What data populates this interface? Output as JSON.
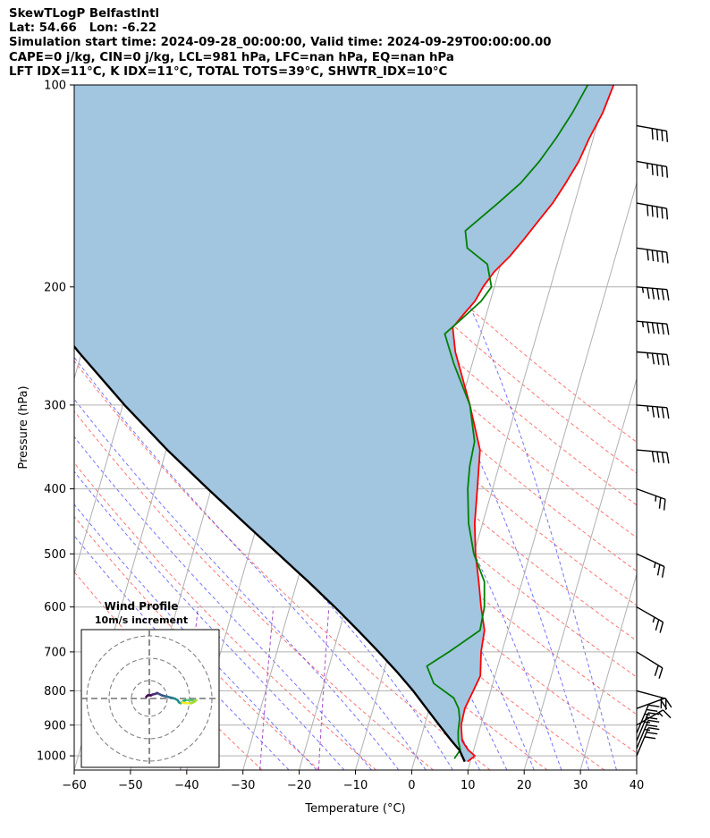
{
  "header": {
    "line1": "SkewTLogP BelfastIntl",
    "line2": "Lat: 54.66   Lon: -6.22",
    "line3": "Simulation start time: 2024-09-28_00:00:00, Valid time: 2024-09-29T00:00:00.00",
    "line4": "CAPE=0 j/kg, CIN=0 j/kg, LCL=981 hPa, LFC=nan hPa, EQ=nan hPa",
    "line5": "LFT IDX=11°C, K IDX=11°C, TOTAL TOTS=39°C, SHWTR_IDX=10°C"
  },
  "chart_data": [
    {
      "type": "line",
      "subtype": "skew-t log-p",
      "title": "",
      "xlabel": "Temperature (°C)",
      "ylabel": "Pressure (hPa)",
      "xlim": [
        -60,
        40
      ],
      "ylim": [
        1050,
        100
      ],
      "y_scale": "log",
      "x_ticks": [
        -60,
        -50,
        -40,
        -30,
        -20,
        -10,
        0,
        10,
        20,
        30,
        40
      ],
      "x_tick_labels": [
        "−60",
        "−50",
        "−40",
        "−30",
        "−20",
        "−10",
        "0",
        "10",
        "20",
        "30",
        "40"
      ],
      "y_ticks": [
        1000,
        900,
        800,
        700,
        600,
        500,
        400,
        300,
        200,
        100
      ],
      "y_tick_labels": [
        "1000",
        "900",
        "800",
        "700",
        "600",
        "500",
        "400",
        "300",
        "200",
        "100"
      ],
      "grid": true,
      "legend": "none",
      "series": [
        {
          "color": "#ff0000",
          "points": [
            [
              1020,
              9.5
            ],
            [
              1000,
              10.5
            ],
            [
              980,
              9.0
            ],
            [
              950,
              7.5
            ],
            [
              900,
              6.5
            ],
            [
              850,
              6.3
            ],
            [
              800,
              6.9
            ],
            [
              760,
              7.4
            ],
            [
              700,
              6.3
            ],
            [
              650,
              5.8
            ],
            [
              600,
              4.0
            ],
            [
              550,
              2.3
            ],
            [
              500,
              0.3
            ],
            [
              450,
              -1.4
            ],
            [
              400,
              -2.7
            ],
            [
              350,
              -4.2
            ],
            [
              300,
              -8.3
            ],
            [
              250,
              -13.6
            ],
            [
              230,
              -15.3
            ],
            [
              220,
              -14.1
            ],
            [
              210,
              -12.7
            ],
            [
              200,
              -12.0
            ],
            [
              190,
              -10.8
            ],
            [
              180,
              -8.8
            ],
            [
              170,
              -7.2
            ],
            [
              160,
              -5.6
            ],
            [
              150,
              -3.9
            ],
            [
              140,
              -2.6
            ],
            [
              130,
              -1.4
            ],
            [
              120,
              -0.7
            ],
            [
              110,
              0.4
            ],
            [
              100,
              0.9
            ]
          ]
        },
        {
          "color": "#008000",
          "points": [
            [
              1010,
              7.0
            ],
            [
              980,
              7.6
            ],
            [
              950,
              6.8
            ],
            [
              920,
              6.3
            ],
            [
              880,
              5.9
            ],
            [
              850,
              5.2
            ],
            [
              820,
              3.8
            ],
            [
              780,
              -0.5
            ],
            [
              735,
              -2.6
            ],
            [
              700,
              0.6
            ],
            [
              650,
              5.0
            ],
            [
              600,
              4.6
            ],
            [
              550,
              3.3
            ],
            [
              500,
              0.0
            ],
            [
              450,
              -2.5
            ],
            [
              400,
              -4.4
            ],
            [
              370,
              -5.2
            ],
            [
              340,
              -5.6
            ],
            [
              300,
              -8.3
            ],
            [
              260,
              -13.3
            ],
            [
              235,
              -16.4
            ],
            [
              225,
              -14.5
            ],
            [
              210,
              -11.6
            ],
            [
              200,
              -10.5
            ],
            [
              185,
              -12.4
            ],
            [
              175,
              -16.8
            ],
            [
              165,
              -18.0
            ],
            [
              150,
              -13.6
            ],
            [
              140,
              -10.6
            ],
            [
              130,
              -8.4
            ],
            [
              120,
              -6.6
            ],
            [
              110,
              -5.0
            ],
            [
              100,
              -3.7
            ]
          ]
        },
        {
          "color": "#000000",
          "points": [
            [
              1020,
              9.0
            ],
            [
              981,
              7.5
            ],
            [
              950,
              5.6
            ],
            [
              900,
              2.6
            ],
            [
              850,
              -0.5
            ],
            [
              800,
              -3.8
            ],
            [
              750,
              -7.6
            ],
            [
              700,
              -11.9
            ],
            [
              650,
              -16.7
            ],
            [
              600,
              -22.0
            ],
            [
              550,
              -28.0
            ],
            [
              500,
              -34.8
            ],
            [
              450,
              -42.3
            ],
            [
              400,
              -50.6
            ],
            [
              350,
              -59.8
            ],
            [
              300,
              -69.7
            ],
            [
              250,
              -80.6
            ],
            [
              200,
              -93.0
            ],
            [
              150,
              -107.6
            ],
            [
              100,
              -126.4
            ]
          ]
        }
      ],
      "shaded_region": {
        "between": [
          "#ff0000",
          "#000000"
        ],
        "color": "#a2c5e0"
      },
      "background_lines": {
        "isotherms_C": [
          -150,
          -140,
          -130,
          -120,
          -110,
          -100,
          -90,
          -80,
          -70,
          -60,
          -50,
          -40,
          -30,
          -20,
          -10,
          0,
          10,
          20,
          30,
          40
        ],
        "dry_adiabats_C": [
          -30,
          -20,
          -10,
          0,
          10,
          20,
          30,
          40,
          50,
          60,
          70,
          80,
          90,
          100,
          110,
          120,
          130
        ],
        "moist_adiabats_C": [
          -25,
          -20,
          -15,
          -10,
          -5,
          0,
          5,
          10,
          15,
          20,
          25,
          30,
          35
        ],
        "mixing_lines_gkg": [
          0.1,
          0.4,
          1.0
        ]
      },
      "wind_barbs": [
        {
          "p": 1000,
          "u": -5.5,
          "v": -13.2
        },
        {
          "p": 975,
          "u": -5.3,
          "v": -12.8
        },
        {
          "p": 950,
          "u": -5.1,
          "v": -12.3
        },
        {
          "p": 925,
          "u": -4.9,
          "v": -11.7
        },
        {
          "p": 900,
          "u": -6.8,
          "v": -3.9
        },
        {
          "p": 850,
          "u": -9.1,
          "v": -3.3
        },
        {
          "p": 800,
          "u": -10.4,
          "v": 2.8
        },
        {
          "p": 700,
          "u": -9.8,
          "v": 6.1
        },
        {
          "p": 600,
          "u": -10.8,
          "v": 6.2
        },
        {
          "p": 500,
          "u": -11.9,
          "v": 5.5
        },
        {
          "p": 400,
          "u": -12.6,
          "v": 4.6
        },
        {
          "p": 350,
          "u": -19.7,
          "v": 1.7
        },
        {
          "p": 300,
          "u": -22.9,
          "v": 2.0
        },
        {
          "p": 250,
          "u": -23.9,
          "v": 2.1
        },
        {
          "p": 225,
          "u": -26.9,
          "v": 2.4
        },
        {
          "p": 200,
          "u": -27.9,
          "v": 2.4
        },
        {
          "p": 175,
          "u": -24.6,
          "v": 3.5
        },
        {
          "p": 150,
          "u": -24.8,
          "v": 4.4
        },
        {
          "p": 130,
          "u": -21.6,
          "v": 3.8
        },
        {
          "p": 115,
          "u": -19.7,
          "v": 3.5
        }
      ]
    },
    {
      "type": "line",
      "subtype": "hodograph",
      "title": "Wind Profile",
      "subtitle": "10m/s increment",
      "ring_step_ms": 10,
      "colormap": "viridis",
      "points": [
        [
          -2,
          1
        ],
        [
          -1,
          2
        ],
        [
          1,
          2
        ],
        [
          2,
          2.5
        ],
        [
          4,
          3
        ],
        [
          5,
          3.5
        ],
        [
          6,
          3
        ],
        [
          8,
          2
        ],
        [
          10,
          1.5
        ],
        [
          12,
          1
        ],
        [
          14,
          0.5
        ],
        [
          16,
          0
        ],
        [
          18,
          -1
        ],
        [
          19,
          -2.5
        ],
        [
          20,
          -3
        ],
        [
          22,
          -1.5
        ],
        [
          24,
          -1
        ],
        [
          26,
          -1
        ],
        [
          29,
          -1.5
        ],
        [
          30,
          -1
        ],
        [
          29,
          -2
        ],
        [
          27,
          -3
        ],
        [
          25,
          -3
        ],
        [
          23,
          -3
        ],
        [
          21,
          -2.5
        ]
      ]
    }
  ]
}
